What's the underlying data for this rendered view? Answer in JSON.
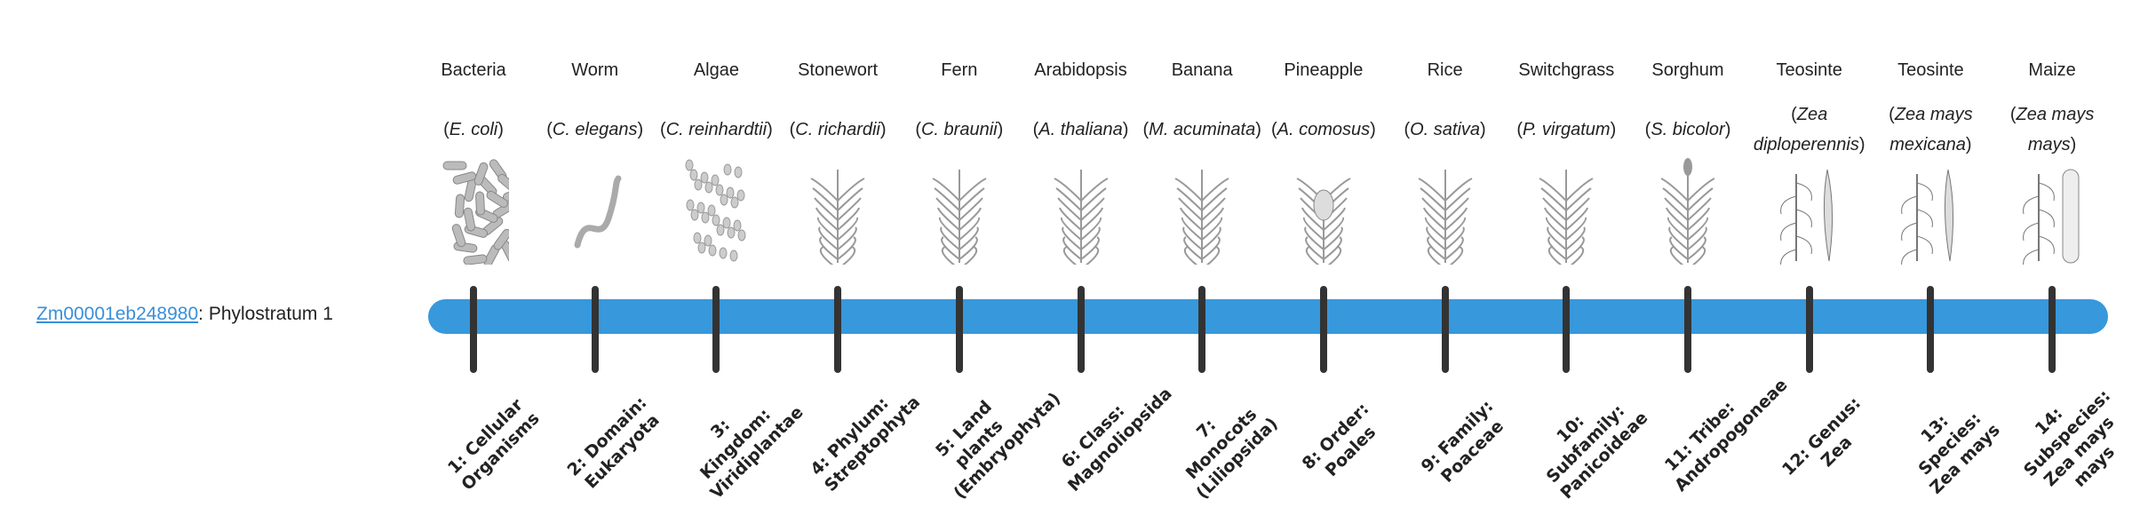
{
  "gene": {
    "id": "Zm00001eb248980",
    "suffix": ": Phylostratum 1"
  },
  "colors": {
    "bar": "#3798dc",
    "tick": "#333333",
    "link": "#3a8fd8"
  },
  "strata": [
    {
      "common": "Bacteria",
      "sci": "E. coli",
      "icon": "bacteria-icon",
      "rank": "1: Cellular Organisms"
    },
    {
      "common": "Worm",
      "sci": "C. elegans",
      "icon": "worm-icon",
      "rank": "2: Domain: Eukaryota"
    },
    {
      "common": "Algae",
      "sci": "C. reinhardtii",
      "icon": "algae-icon",
      "rank": "3: Kingdom: Viridiplantae"
    },
    {
      "common": "Stonewort",
      "sci": "C. richardii",
      "icon": "stonewort-icon",
      "rank": "4: Phylum: Streptophyta"
    },
    {
      "common": "Fern",
      "sci": "C. braunii",
      "icon": "fern-icon",
      "rank": "5: Land plants (Embryophyta)"
    },
    {
      "common": "Arabidopsis",
      "sci": "A. thaliana",
      "icon": "arabidopsis-icon",
      "rank": "6: Class: Magnoliopsida"
    },
    {
      "common": "Banana",
      "sci": "M. acuminata",
      "icon": "banana-icon",
      "rank": "7: Monocots (Liliopsida)"
    },
    {
      "common": "Pineapple",
      "sci": "A. comosus",
      "icon": "pineapple-icon",
      "rank": "8: Order: Poales"
    },
    {
      "common": "Rice",
      "sci": "O. sativa",
      "icon": "rice-icon",
      "rank": "9: Family: Poaceae"
    },
    {
      "common": "Switchgrass",
      "sci": "P. virgatum",
      "icon": "switchgrass-icon",
      "rank": "10: Subfamily: Panicoideae"
    },
    {
      "common": "Sorghum",
      "sci": "S. bicolor",
      "icon": "sorghum-icon",
      "rank": "11: Tribe: Andropogoneae"
    },
    {
      "common": "Teosinte",
      "sci": "Zea diploperennis",
      "icon": "teosinte-icon",
      "rank": "12: Genus: Zea"
    },
    {
      "common": "Teosinte",
      "sci": "Zea mays mexicana",
      "icon": "teosinte-icon",
      "rank": "13: Species: Zea mays"
    },
    {
      "common": "Maize",
      "sci": "Zea mays mays",
      "icon": "maize-icon",
      "rank": "14: Subspecies: Zea mays mays"
    }
  ]
}
